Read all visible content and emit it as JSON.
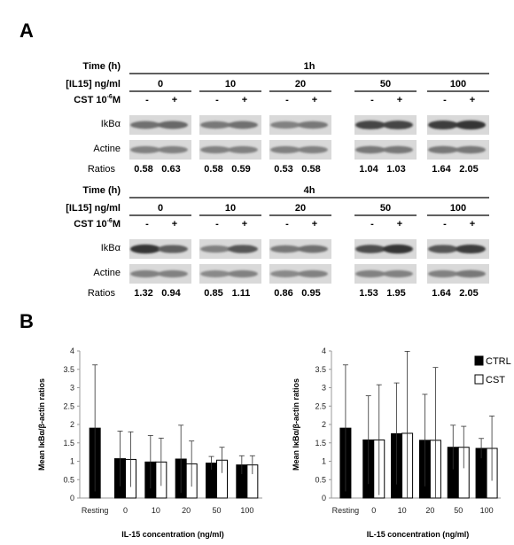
{
  "panel_a": {
    "label": "A",
    "row_labels": {
      "time": "Time (h)",
      "il15": "[IL15] ng/ml",
      "cst_prefix": "CST 10",
      "cst_exp": "-6",
      "cst_suffix": "M",
      "ikba": "IkBα",
      "actine": "Actine",
      "ratios": "Ratios"
    },
    "concentrations": [
      "0",
      "10",
      "20",
      "50",
      "100"
    ],
    "cst_signs": [
      "-",
      "+"
    ],
    "blots": [
      {
        "time": "1h",
        "ratios": [
          "0.58",
          "0.63",
          "0.58",
          "0.59",
          "0.53",
          "0.58",
          "1.04",
          "1.03",
          "1.64",
          "2.05"
        ],
        "ikba_intensity": [
          0.55,
          0.6,
          0.5,
          0.55,
          0.45,
          0.5,
          0.8,
          0.8,
          0.85,
          0.9
        ],
        "actine_intensity": [
          0.45,
          0.45,
          0.45,
          0.45,
          0.45,
          0.45,
          0.5,
          0.5,
          0.5,
          0.5
        ]
      },
      {
        "time": "4h",
        "ratios": [
          "1.32",
          "0.94",
          "0.85",
          "1.11",
          "0.86",
          "0.95",
          "1.53",
          "1.95",
          "1.64",
          "2.05"
        ],
        "ikba_intensity": [
          0.9,
          0.65,
          0.45,
          0.7,
          0.5,
          0.55,
          0.75,
          0.9,
          0.7,
          0.85
        ],
        "actine_intensity": [
          0.45,
          0.45,
          0.4,
          0.45,
          0.4,
          0.45,
          0.45,
          0.45,
          0.45,
          0.5
        ]
      }
    ]
  },
  "panel_b": {
    "label": "B",
    "legend": [
      "CTRL",
      "CST"
    ],
    "legend_colors": [
      "#000000",
      "#ffffff"
    ]
  },
  "chart_data": [
    {
      "type": "bar",
      "ylabel": "Mean IκBα/β-actin ratios",
      "xlabel": "IL-15 concentration (ng/ml)",
      "ylim": [
        0,
        4
      ],
      "yticks": [
        "0",
        "0.5",
        "1",
        "1.5",
        "2",
        "2.5",
        "3",
        "3.5",
        "4"
      ],
      "categories": [
        "Resting",
        "0",
        "10",
        "20",
        "50",
        "100"
      ],
      "series": [
        {
          "name": "CTRL",
          "values": [
            1.9,
            1.07,
            0.98,
            1.06,
            0.95,
            0.9
          ],
          "error": [
            1.72,
            0.75,
            0.72,
            0.92,
            0.18,
            0.25
          ]
        },
        {
          "name": "CST",
          "values": [
            null,
            1.05,
            0.98,
            0.93,
            1.03,
            0.9
          ],
          "error": [
            null,
            0.75,
            0.65,
            0.62,
            0.35,
            0.25
          ]
        }
      ]
    },
    {
      "type": "bar",
      "ylabel": "Mean IκBα/β-actin ratios",
      "xlabel": "IL-15 concentration (ng/ml)",
      "ylim": [
        0,
        4
      ],
      "yticks": [
        "0",
        "0.5",
        "1",
        "1.5",
        "2",
        "2.5",
        "3",
        "3.5",
        "4"
      ],
      "categories": [
        "Resting",
        "0",
        "10",
        "20",
        "50",
        "100"
      ],
      "series": [
        {
          "name": "CTRL",
          "values": [
            1.9,
            1.58,
            1.75,
            1.57,
            1.38,
            1.35
          ],
          "error": [
            1.72,
            1.2,
            1.38,
            1.25,
            0.6,
            0.27
          ]
        },
        {
          "name": "CST",
          "values": [
            null,
            1.58,
            1.76,
            1.57,
            1.38,
            1.35
          ],
          "error": [
            null,
            1.5,
            2.23,
            1.98,
            0.57,
            0.88
          ]
        }
      ]
    }
  ]
}
